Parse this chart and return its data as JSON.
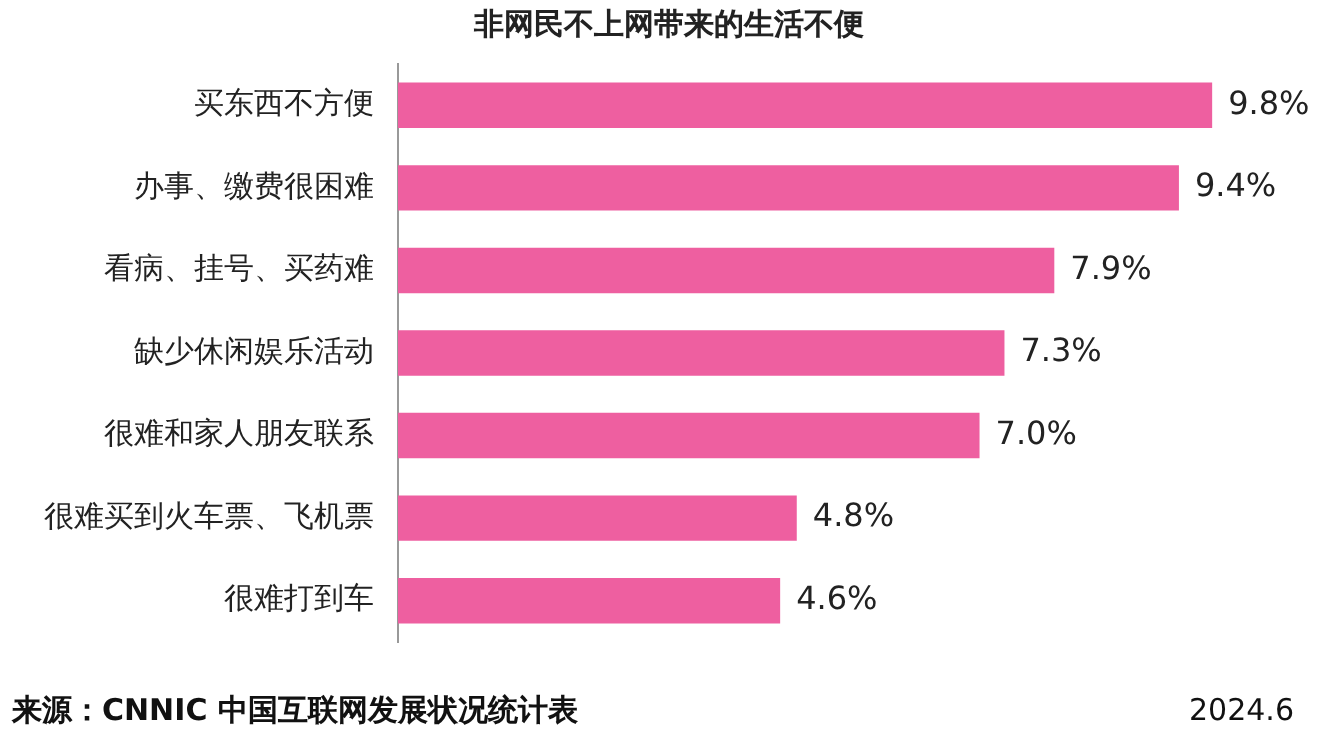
{
  "chart_data": {
    "type": "bar",
    "orientation": "horizontal",
    "title": "非网民不上网带来的生活不便",
    "categories": [
      "买东西不方便",
      "办事、缴费很困难",
      "看病、挂号、买药难",
      "缺少休闲娱乐活动",
      "很难和家人朋友联系",
      "很难买到火车票、飞机票",
      "很难打到车"
    ],
    "values": [
      9.8,
      9.4,
      7.9,
      7.3,
      7.0,
      4.8,
      4.6
    ],
    "value_labels": [
      "9.8%",
      "9.4%",
      "7.9%",
      "7.3%",
      "7.0%",
      "4.8%",
      "4.6%"
    ],
    "color": "#ee5fa0",
    "grid": false,
    "legend": false,
    "tick_labels": "y",
    "annotations": [
      "来源：CNNIC 中国互联网发展状况统计表",
      "2024.6"
    ]
  }
}
